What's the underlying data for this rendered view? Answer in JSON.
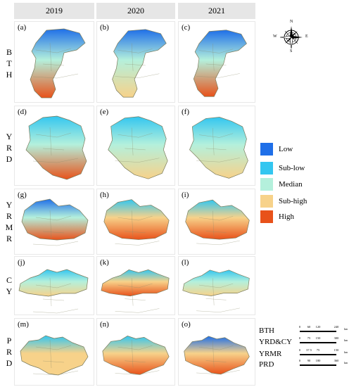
{
  "years": [
    "2019",
    "2020",
    "2021"
  ],
  "regions": [
    {
      "key": "bth",
      "label": [
        "B",
        "T",
        "H"
      ]
    },
    {
      "key": "yrd",
      "label": [
        "Y",
        "R",
        "D"
      ]
    },
    {
      "key": "yrmr",
      "label": [
        "Y",
        "R",
        "M",
        "R"
      ]
    },
    {
      "key": "cy",
      "label": [
        "C",
        "Y"
      ]
    },
    {
      "key": "prd",
      "label": [
        "P",
        "R",
        "D"
      ]
    }
  ],
  "panel_labels": [
    [
      "(a)",
      "(b)",
      "(c)"
    ],
    [
      "(d)",
      "(e)",
      "(f)"
    ],
    [
      "(g)",
      "(h)",
      "(i)"
    ],
    [
      "(j)",
      "(k)",
      "(l)"
    ],
    [
      "(m)",
      "(n)",
      "(o)"
    ]
  ],
  "compass": {
    "n": "N",
    "s": "S",
    "e": "E",
    "w": "W"
  },
  "legend": [
    {
      "label": "Low",
      "color": "#1f6fe8"
    },
    {
      "label": "Sub-low",
      "color": "#33c6f0"
    },
    {
      "label": "Median",
      "color": "#b4f0dc"
    },
    {
      "label": "Sub-high",
      "color": "#f7d28a"
    },
    {
      "label": "High",
      "color": "#e8521a"
    }
  ],
  "scale_bars": [
    {
      "name": "BTH",
      "ticks": [
        "0",
        "60",
        "120",
        "240"
      ],
      "unit": "km"
    },
    {
      "name": "YRD&CY",
      "ticks": [
        "0",
        "75",
        "150",
        "300"
      ],
      "unit": "km"
    },
    {
      "name": "YRMR",
      "ticks": [
        "0",
        "37.5",
        "75",
        "150"
      ],
      "unit": "km"
    },
    {
      "name": "PRD",
      "ticks": [
        "0",
        "90",
        "180",
        "360"
      ],
      "unit": "km"
    }
  ]
}
